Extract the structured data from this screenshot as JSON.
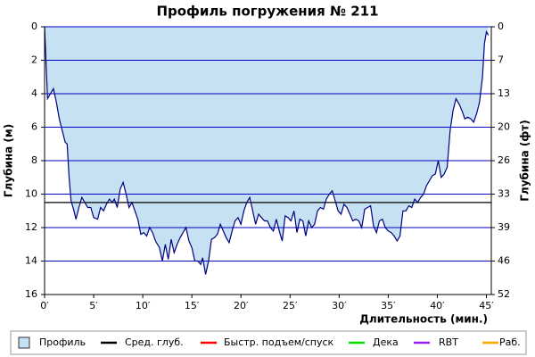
{
  "chart_data": {
    "type": "area",
    "title": "Профиль погружения № 211",
    "y_label": "Глубина (м)",
    "y2_label": "Глубина (фт)",
    "x_label": "Длительность (мин.)",
    "x": [
      0,
      0.3,
      0.6,
      0.9,
      1.2,
      1.5,
      1.8,
      2.1,
      2.3,
      2.5,
      2.7,
      3.0,
      3.2,
      3.5,
      3.8,
      4.1,
      4.4,
      4.7,
      5.0,
      5.4,
      5.7,
      6.0,
      6.3,
      6.6,
      6.9,
      7.1,
      7.4,
      7.7,
      8.0,
      8.3,
      8.6,
      8.9,
      9.2,
      9.5,
      9.8,
      10.1,
      10.4,
      10.7,
      11.0,
      11.3,
      11.7,
      12.0,
      12.3,
      12.6,
      12.9,
      13.2,
      13.5,
      13.8,
      14.1,
      14.4,
      14.7,
      15.0,
      15.3,
      15.6,
      15.9,
      16.1,
      16.4,
      16.7,
      17.0,
      17.3,
      17.6,
      17.9,
      18.2,
      18.5,
      18.8,
      19.1,
      19.4,
      19.7,
      20.0,
      20.3,
      20.6,
      20.9,
      21.2,
      21.5,
      21.8,
      22.1,
      22.4,
      22.7,
      23.0,
      23.3,
      23.6,
      23.9,
      24.2,
      24.5,
      24.8,
      25.1,
      25.4,
      25.7,
      26.0,
      26.3,
      26.6,
      26.9,
      27.2,
      27.5,
      27.8,
      28.1,
      28.4,
      28.7,
      29.0,
      29.3,
      29.6,
      29.9,
      30.2,
      30.5,
      30.8,
      31.1,
      31.4,
      31.7,
      32.0,
      32.3,
      32.6,
      32.9,
      33.2,
      33.5,
      33.8,
      34.1,
      34.4,
      34.7,
      35.0,
      35.3,
      35.6,
      35.9,
      36.2,
      36.5,
      36.8,
      37.1,
      37.4,
      37.7,
      38.0,
      38.3,
      38.6,
      38.9,
      39.2,
      39.5,
      39.8,
      40.1,
      40.4,
      40.7,
      41.0,
      41.3,
      41.6,
      41.9,
      42.2,
      42.5,
      42.8,
      43.1,
      43.4,
      43.7,
      44.0,
      44.3,
      44.6,
      44.8,
      45.0,
      45.2
    ],
    "series": [
      {
        "name": "Профиль",
        "color": "#c6e2f2",
        "line_color": "#000080",
        "values": [
          0,
          4.3,
          4.0,
          3.7,
          4.5,
          5.5,
          6.2,
          6.9,
          7.0,
          9.0,
          10.4,
          11.0,
          11.5,
          10.8,
          10.2,
          10.5,
          10.8,
          10.8,
          11.4,
          11.5,
          10.8,
          11.0,
          10.6,
          10.3,
          10.5,
          10.3,
          10.8,
          9.7,
          9.3,
          10.0,
          10.8,
          10.5,
          11.0,
          11.5,
          12.4,
          12.3,
          12.5,
          12.0,
          12.3,
          12.8,
          13.2,
          14.0,
          13.0,
          13.9,
          12.7,
          13.5,
          13.0,
          12.6,
          12.3,
          12.0,
          12.8,
          13.2,
          14.0,
          14.0,
          14.2,
          13.8,
          14.8,
          14.0,
          12.7,
          12.6,
          12.4,
          11.8,
          12.2,
          12.6,
          12.9,
          12.2,
          11.6,
          11.4,
          11.8,
          11.0,
          10.5,
          10.2,
          11.0,
          11.8,
          11.2,
          11.4,
          11.6,
          11.6,
          12.0,
          12.2,
          11.5,
          12.2,
          12.8,
          11.3,
          11.4,
          11.6,
          11.0,
          12.3,
          11.5,
          11.6,
          12.5,
          11.6,
          12.0,
          11.8,
          11.0,
          10.8,
          10.9,
          10.3,
          10.0,
          9.8,
          10.4,
          11.0,
          11.2,
          10.6,
          10.8,
          11.2,
          11.6,
          11.5,
          11.6,
          12.0,
          10.9,
          10.8,
          10.7,
          11.9,
          12.3,
          11.6,
          11.5,
          12.0,
          12.2,
          12.3,
          12.5,
          12.8,
          12.5,
          11.0,
          11.0,
          10.7,
          10.8,
          10.3,
          10.5,
          10.2,
          10.0,
          9.5,
          9.2,
          8.9,
          8.8,
          8.0,
          9.0,
          8.8,
          8.4,
          6.2,
          5.0,
          4.3,
          4.6,
          5.0,
          5.5,
          5.4,
          5.5,
          5.7,
          5.2,
          4.5,
          3.0,
          1.0,
          0.3,
          0.5
        ]
      }
    ],
    "avg_depth": {
      "name": "Сред. глуб.",
      "color": "#000000",
      "value": 10.5
    },
    "other_lines": [
      {
        "name": "Быстр. подъем/спуск",
        "color": "#ff0000"
      },
      {
        "name": "Дека",
        "color": "#00e000"
      },
      {
        "name": "RBT",
        "color": "#a020f0"
      },
      {
        "name": "Раб.",
        "color": "#ffa500"
      }
    ],
    "xlim": [
      0,
      45.5
    ],
    "xticks": [
      {
        "value": 0,
        "label": "0′"
      },
      {
        "value": 5,
        "label": "5′"
      },
      {
        "value": 10,
        "label": "10′"
      },
      {
        "value": 15,
        "label": "15′"
      },
      {
        "value": 20,
        "label": "20′"
      },
      {
        "value": 25,
        "label": "25′"
      },
      {
        "value": 30,
        "label": "30′"
      },
      {
        "value": 35,
        "label": "35′"
      },
      {
        "value": 40,
        "label": "40′"
      },
      {
        "value": 45,
        "label": "45′"
      }
    ],
    "ylim": [
      16,
      0
    ],
    "yticks": [
      0,
      2,
      4,
      6,
      8,
      10,
      12,
      14,
      16
    ],
    "y2lim": [
      52.49,
      0
    ],
    "y2ticks": [
      0,
      {
        "value": 6.56,
        "label": "7"
      },
      {
        "value": 13.12,
        "label": "13"
      },
      {
        "value": 19.69,
        "label": "20"
      },
      {
        "value": 26.25,
        "label": "26"
      },
      {
        "value": 32.81,
        "label": "33"
      },
      {
        "value": 39.37,
        "label": "39"
      },
      {
        "value": 45.93,
        "label": "46"
      },
      {
        "value": 52.49,
        "label": "52"
      }
    ],
    "grid": true,
    "grid_color": "#0000c8"
  }
}
